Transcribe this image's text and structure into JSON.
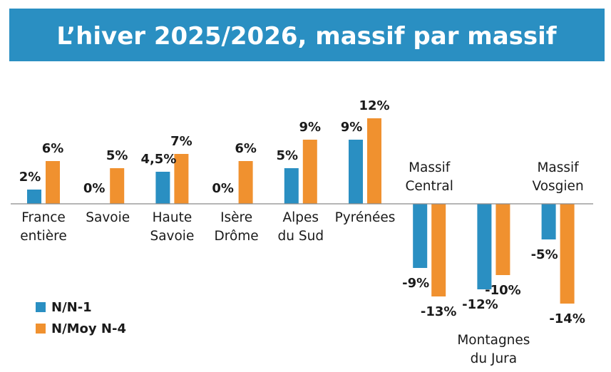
{
  "chart_data": {
    "type": "bar",
    "title": "L’hiver 2025/2026, massif par massif",
    "categories": [
      {
        "lines": [
          "France",
          "entière"
        ],
        "label_pos": "below"
      },
      {
        "lines": [
          "Savoie"
        ],
        "label_pos": "below"
      },
      {
        "lines": [
          "Haute",
          "Savoie"
        ],
        "label_pos": "below"
      },
      {
        "lines": [
          "Isère",
          "Drôme"
        ],
        "label_pos": "below"
      },
      {
        "lines": [
          "Alpes",
          "du Sud"
        ],
        "label_pos": "below"
      },
      {
        "lines": [
          "Pyrénées"
        ],
        "label_pos": "below"
      },
      {
        "lines": [
          "Massif",
          "Central"
        ],
        "label_pos": "above"
      },
      {
        "lines": [
          "Montagnes",
          "du Jura"
        ],
        "label_pos": "bottom"
      },
      {
        "lines": [
          "Massif",
          "Vosgien"
        ],
        "label_pos": "above"
      }
    ],
    "series": [
      {
        "name": "N/N-1",
        "color": "#2a8fc2",
        "values": [
          2,
          0,
          4.5,
          0,
          5,
          9,
          -9,
          -12,
          -5
        ],
        "labels": [
          "2%",
          "0%",
          "4,5%",
          "0%",
          "5%",
          "9%",
          "-9%",
          "-12%",
          "-5%"
        ]
      },
      {
        "name": "N/Moy N-4",
        "color": "#f0912f",
        "values": [
          6,
          5,
          7,
          6,
          9,
          12,
          -13,
          -10,
          -14
        ],
        "labels": [
          "6%",
          "5%",
          "7%",
          "6%",
          "9%",
          "12%",
          "-13%",
          "-10%",
          "-14%"
        ]
      }
    ],
    "ylim": [
      -14,
      12
    ],
    "grid": false,
    "legend_position": "bottom-left",
    "colors": {
      "title_band": "#2a8fc2",
      "axis": "#8a8a8a"
    }
  }
}
